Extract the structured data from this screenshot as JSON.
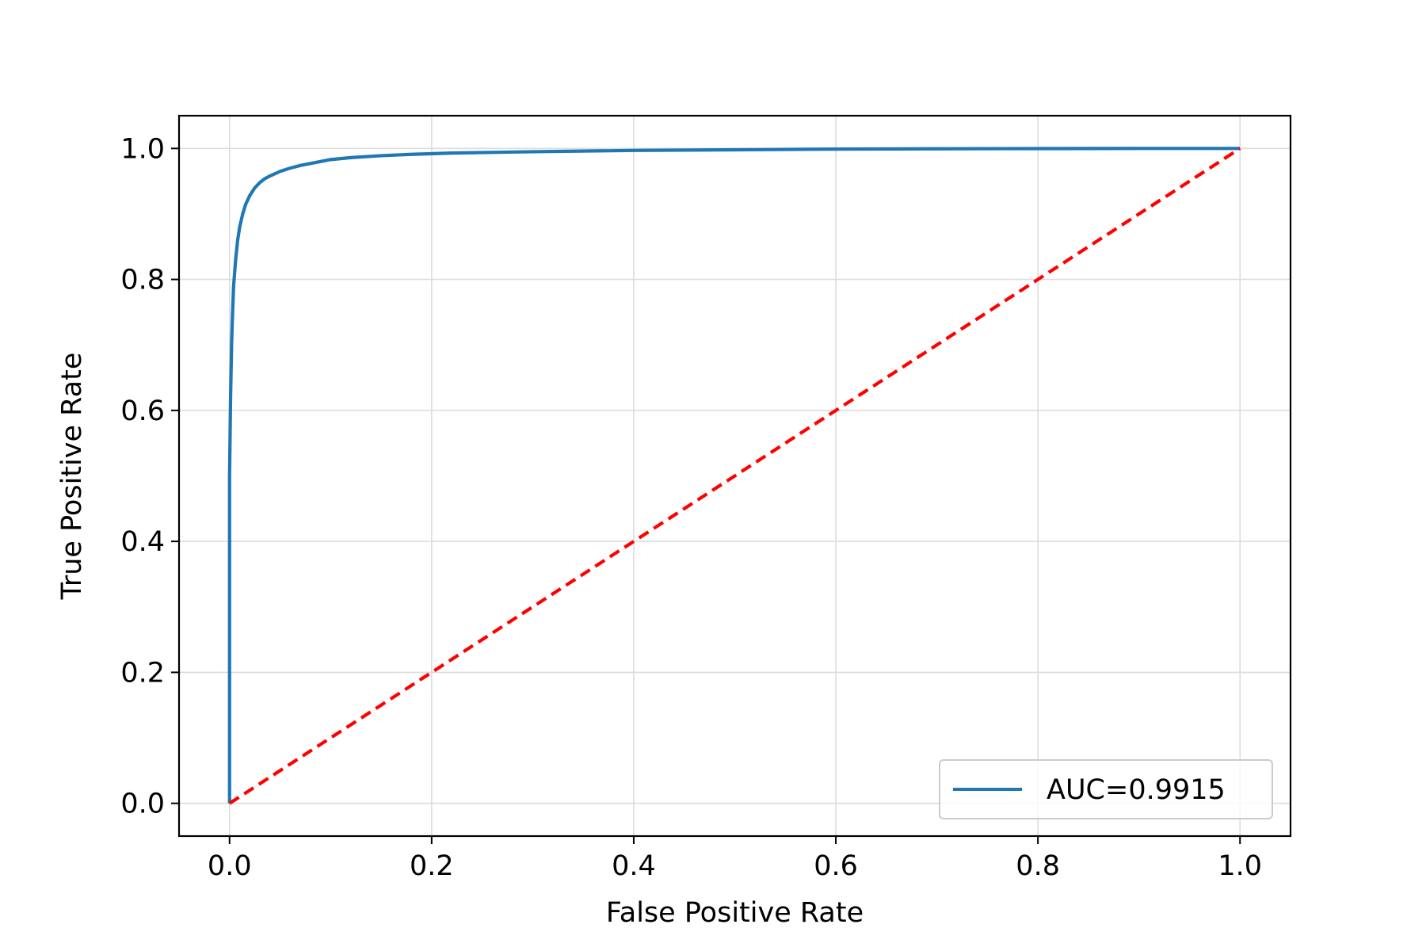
{
  "chart_data": {
    "type": "line",
    "title": "",
    "xlabel": "False Positive Rate",
    "ylabel": "True Positive Rate",
    "xlim": [
      -0.05,
      1.05
    ],
    "ylim": [
      -0.05,
      1.05
    ],
    "xticks": [
      0.0,
      0.2,
      0.4,
      0.6,
      0.8,
      1.0
    ],
    "yticks": [
      0.0,
      0.2,
      0.4,
      0.6,
      0.8,
      1.0
    ],
    "xtick_labels": [
      "0.0",
      "0.2",
      "0.4",
      "0.6",
      "0.8",
      "1.0"
    ],
    "ytick_labels": [
      "0.0",
      "0.2",
      "0.4",
      "0.6",
      "0.8",
      "1.0"
    ],
    "grid": true,
    "legend_position": "lower-right",
    "series": [
      {
        "name": "AUC=0.9915",
        "color": "#1f77b4",
        "style": "solid",
        "x": [
          0.0,
          0.0,
          0.001,
          0.002,
          0.003,
          0.004,
          0.006,
          0.008,
          0.01,
          0.013,
          0.016,
          0.02,
          0.025,
          0.03,
          0.035,
          0.04,
          0.05,
          0.06,
          0.07,
          0.08,
          0.09,
          0.1,
          0.12,
          0.15,
          0.18,
          0.22,
          0.3,
          0.4,
          0.5,
          0.6,
          0.7,
          0.8,
          0.9,
          1.0
        ],
        "y": [
          0.0,
          0.5,
          0.62,
          0.7,
          0.75,
          0.79,
          0.83,
          0.86,
          0.88,
          0.9,
          0.915,
          0.928,
          0.94,
          0.948,
          0.954,
          0.958,
          0.965,
          0.97,
          0.974,
          0.977,
          0.98,
          0.983,
          0.986,
          0.989,
          0.991,
          0.993,
          0.995,
          0.997,
          0.998,
          0.999,
          0.9995,
          0.9998,
          1.0,
          1.0
        ]
      },
      {
        "name": "",
        "color": "#ff0000",
        "style": "dashed",
        "x": [
          0.0,
          1.0
        ],
        "y": [
          0.0,
          1.0
        ]
      }
    ]
  }
}
